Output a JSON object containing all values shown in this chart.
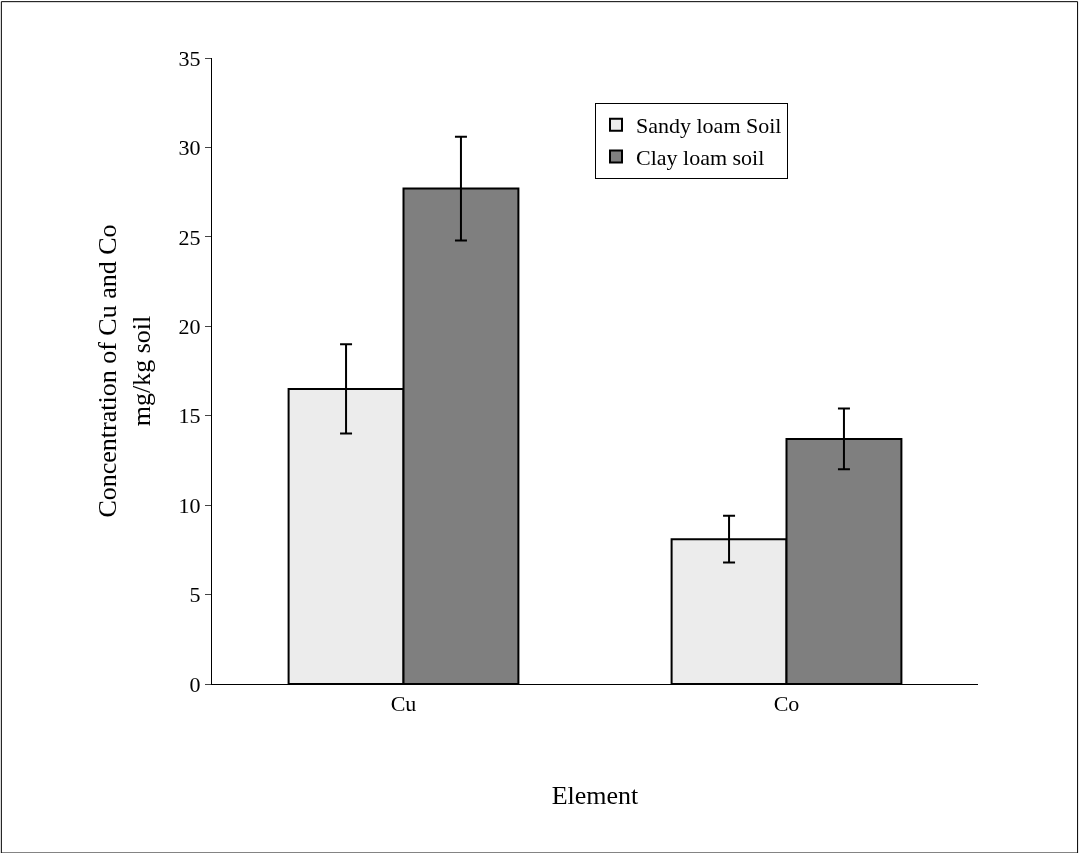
{
  "chart_data": {
    "type": "bar",
    "xlabel": "Element",
    "ylabel": "Concentration of Cu and Co\nmg/kg soil",
    "categories": [
      "Cu",
      "Co"
    ],
    "series": [
      {
        "name": "Sandy loam Soil",
        "color": "#ececec",
        "values": [
          16.5,
          8.1
        ],
        "errors": [
          2.5,
          1.3
        ]
      },
      {
        "name": "Clay loam soil",
        "color": "#7f7f7f",
        "values": [
          27.7,
          13.7
        ],
        "errors": [
          2.9,
          1.7
        ]
      }
    ],
    "ylim": [
      0,
      35
    ],
    "yticks": [
      0,
      5,
      10,
      15,
      20,
      25,
      30,
      35
    ],
    "legend": "top right"
  }
}
